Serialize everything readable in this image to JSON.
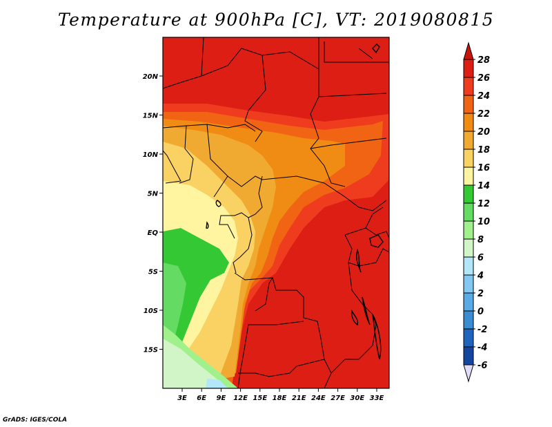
{
  "title": "Temperature at 900hPa [C], VT: 2019080815",
  "credit": "GrADS: IGES/COLA",
  "map": {
    "lat_ticks": [
      "20N",
      "15N",
      "10N",
      "5N",
      "EQ",
      "5S",
      "10S",
      "15S"
    ],
    "lon_ticks": [
      "3E",
      "6E",
      "9E",
      "12E",
      "15E",
      "18E",
      "21E",
      "24E",
      "27E",
      "30E",
      "33E"
    ]
  },
  "colorbar": {
    "labels": [
      "28",
      "26",
      "24",
      "22",
      "20",
      "18",
      "16",
      "14",
      "12",
      "10",
      "8",
      "6",
      "4",
      "2",
      "0",
      "-2",
      "-4",
      "-6"
    ],
    "colors": [
      "#dc1e14",
      "#f03c1e",
      "#f06414",
      "#f08c14",
      "#f0aa32",
      "#fad264",
      "#fff5a0",
      "#34c834",
      "#64dc64",
      "#a0f08c",
      "#d2f5c8",
      "#b4e6fa",
      "#82c8f0",
      "#5aaae6",
      "#3c8cd2",
      "#2064be",
      "#1446a0",
      "#0a1e78",
      "#000064",
      "#e1dcfa"
    ],
    "top_arrow_color": "#c8140a",
    "bottom_arrow_color": "#e1dcfa"
  }
}
